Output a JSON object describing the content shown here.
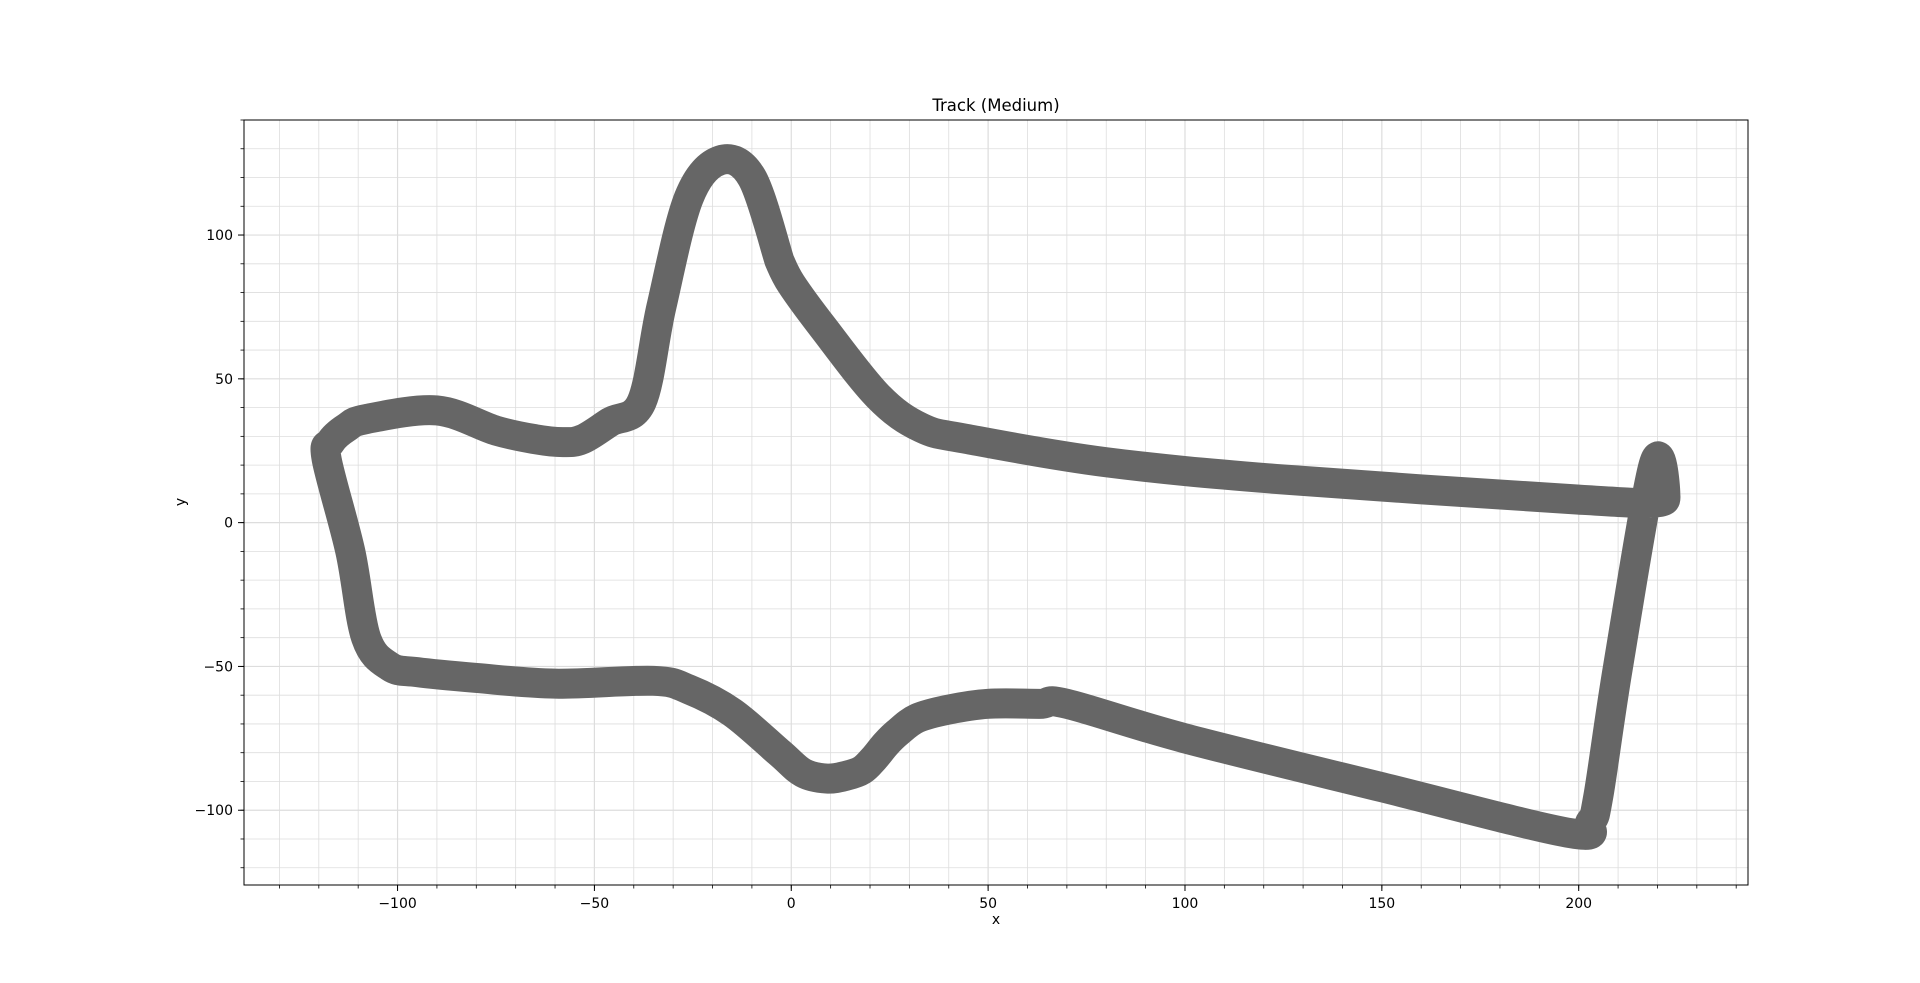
{
  "chart_data": {
    "type": "line",
    "title": "Track (Medium)",
    "xlabel": "x",
    "ylabel": "y",
    "xlim": [
      -139,
      243
    ],
    "ylim": [
      -126,
      140
    ],
    "xticks": [
      -100,
      -50,
      0,
      50,
      100,
      150,
      200
    ],
    "xtick_labels": [
      "−100",
      "−50",
      "0",
      "50",
      "100",
      "150",
      "200"
    ],
    "yticks": [
      -100,
      -50,
      0,
      50,
      100
    ],
    "ytick_labels": [
      "−100",
      "−50",
      "0",
      "50",
      "100"
    ],
    "x_minor_step": 10,
    "y_minor_step": 10,
    "grid": true,
    "legend": "none",
    "colors": {
      "track": "#666666",
      "grid": "#dddddd",
      "axes": "#000000",
      "background": "#ffffff"
    },
    "series": [
      {
        "x": [
          -3,
          -10,
          -18,
          -26,
          -33,
          -38,
          -46,
          -53,
          -58,
          -65,
          -75,
          -90,
          -108,
          -113,
          -117,
          -118,
          -112,
          -108,
          -102,
          -95,
          -80,
          -60,
          -35,
          -26,
          -15,
          -3,
          3,
          9,
          14,
          18,
          21,
          24,
          27,
          32,
          40,
          50,
          63,
          70,
          100,
          150,
          198,
          203,
          205,
          210,
          219,
          222,
          219,
          200,
          125,
          80,
          45,
          33,
          22,
          8,
          0,
          -3
        ],
        "y": [
          91,
          120,
          126,
          113,
          75,
          42,
          35,
          29,
          28,
          29,
          32,
          39,
          36,
          33,
          28,
          22,
          -10,
          -40,
          -50,
          -52,
          -54,
          -56,
          -55,
          -58,
          -66,
          -80,
          -87,
          -89,
          -88,
          -86,
          -82,
          -77,
          -73,
          -68,
          -65,
          -63,
          -63,
          -63,
          -75,
          -92,
          -108,
          -104,
          -95,
          -50,
          20,
          10,
          7,
          8,
          15,
          21,
          29,
          33,
          44,
          68,
          83,
          91
        ]
      }
    ]
  }
}
